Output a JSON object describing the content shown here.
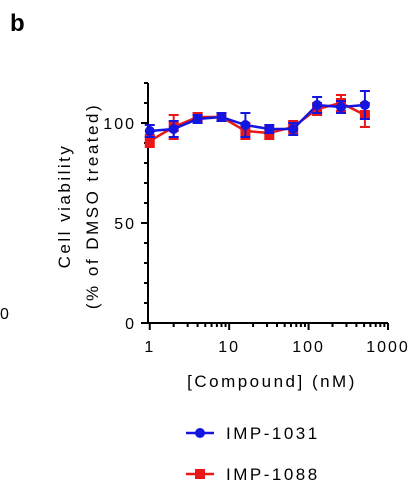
{
  "panel_label": "b",
  "stray_tick": "0",
  "chart_data": {
    "type": "line",
    "xlabel": "[Compound] (nM)",
    "ylabel_line1": "Cell viability",
    "ylabel_line2": "(% of DMSO treated)",
    "xscale": "log",
    "xlim": [
      0.95,
      1000
    ],
    "ylim": [
      0,
      120
    ],
    "x_ticks": [
      {
        "v": 1,
        "label": "1"
      },
      {
        "v": 10,
        "label": "10"
      },
      {
        "v": 100,
        "label": "100"
      },
      {
        "v": 1000,
        "label": "1000"
      }
    ],
    "y_ticks": [
      {
        "v": 0,
        "label": "0"
      },
      {
        "v": 50,
        "label": "50"
      },
      {
        "v": 100,
        "label": "100"
      }
    ],
    "grid": false,
    "legend_position": "bottom-right",
    "series": [
      {
        "name": "IMP-1031",
        "color": "#1515e0",
        "marker": "circle",
        "x": [
          1,
          2,
          4,
          8,
          16,
          32,
          64,
          128,
          256,
          512
        ],
        "y": [
          96,
          97,
          102,
          103,
          99,
          97,
          97,
          109,
          108,
          109
        ],
        "err": [
          3,
          4,
          2,
          2,
          6,
          2,
          3,
          4,
          3,
          7
        ]
      },
      {
        "name": "IMP-1088",
        "color": "#e81818",
        "marker": "square",
        "x": [
          1,
          2,
          4,
          8,
          16,
          32,
          64,
          128,
          256,
          512
        ],
        "y": [
          91,
          98,
          103,
          103,
          96,
          95,
          98,
          107,
          110,
          104
        ],
        "err": [
          3,
          6,
          2,
          2,
          4,
          3,
          3,
          3,
          4,
          6
        ]
      }
    ]
  }
}
